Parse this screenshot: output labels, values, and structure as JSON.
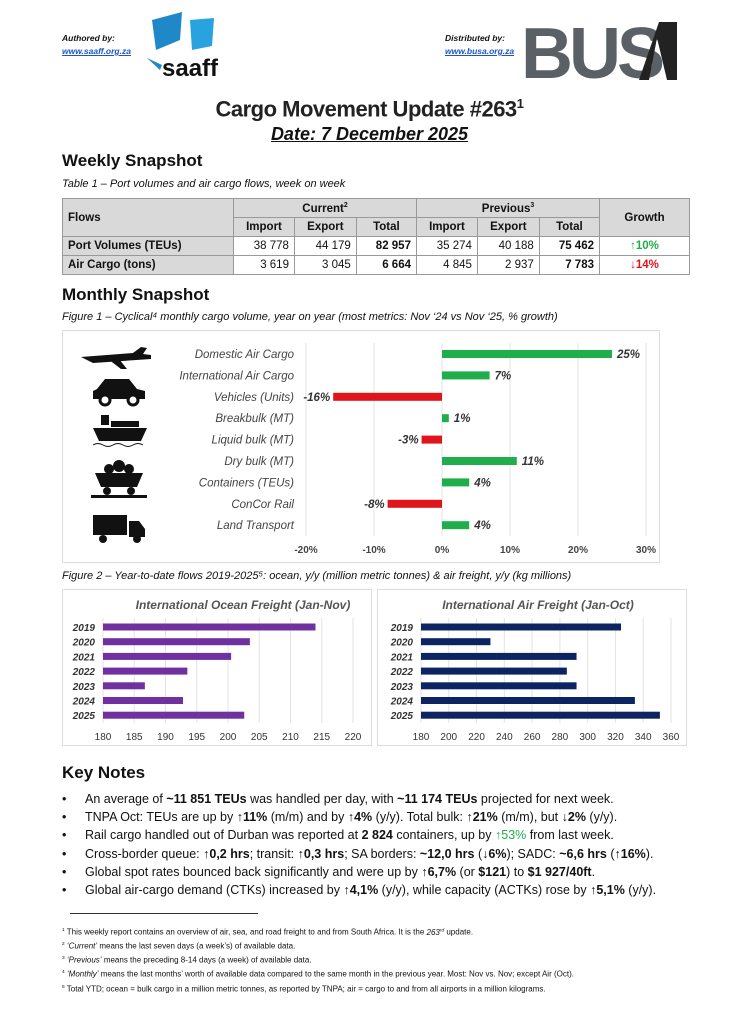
{
  "header": {
    "authored_label": "Authored by:",
    "authored_link": "www.saaff.org.za",
    "saaff_logo": "saaff",
    "distributed_label": "Distributed by:",
    "distributed_link": "www.busa.org.za",
    "busa_logo": "BUSA"
  },
  "title": "Cargo Movement Update #263",
  "title_sup": "1",
  "date": "Date: 7 December 2025",
  "weekly": {
    "heading": "Weekly Snapshot",
    "caption": "Table 1 – Port volumes and air cargo flows, week on week",
    "cols": {
      "flows": "Flows",
      "current": "Current",
      "current_sup": "2",
      "previous": "Previous",
      "previous_sup": "3",
      "growth": "Growth",
      "import": "Import",
      "export": "Export",
      "total": "Total"
    },
    "rows": [
      {
        "label": "Port Volumes (TEUs)",
        "c_imp": "38 778",
        "c_exp": "44 179",
        "c_tot": "82 957",
        "p_imp": "35 274",
        "p_exp": "40 188",
        "p_tot": "75 462",
        "growth": "↑10%",
        "dir": "up"
      },
      {
        "label": "Air Cargo (tons)",
        "c_imp": "3 619",
        "c_exp": "3 045",
        "c_tot": "6 664",
        "p_imp": "4 845",
        "p_exp": "2 937",
        "p_tot": "7 783",
        "growth": "↓14%",
        "dir": "down"
      }
    ]
  },
  "monthly": {
    "heading": "Monthly Snapshot",
    "caption": "Figure 1 – Cyclical⁴ monthly cargo volume, year on year (most metrics: Nov ‘24 vs Nov ‘25, % growth)"
  },
  "fig2_caption": "Figure 2 – Year-to-date flows 2019-2025⁵: ocean, y/y (million metric tonnes) & air freight, y/y (kg millions)",
  "colors": {
    "positive": "#1fae4b",
    "negative": "#e0141b",
    "ocean": "#7030a0",
    "air": "#0c2461"
  },
  "chart_data": [
    {
      "type": "bar",
      "orientation": "horizontal",
      "title": "",
      "categories": [
        "Domestic Air Cargo",
        "International Air Cargo",
        "Vehicles (Units)",
        "Breakbulk (MT)",
        "Liquid bulk (MT)",
        "Dry bulk (MT)",
        "Containers (TEUs)",
        "ConCor Rail",
        "Land Transport"
      ],
      "values": [
        25,
        7,
        -16,
        1,
        -3,
        11,
        4,
        -8,
        4
      ],
      "labels": [
        "25%",
        "7%",
        "-16%",
        "1%",
        "-3%",
        "11%",
        "4%",
        "-8%",
        "4%"
      ],
      "xlim": [
        -20,
        30
      ],
      "xticks": [
        "-20%",
        "-10%",
        "0%",
        "10%",
        "20%",
        "30%"
      ],
      "icons": [
        "airplane-icon",
        "car-icon",
        "ship-icon",
        "mining-cart-icon",
        "truck-icon"
      ]
    },
    {
      "type": "bar",
      "orientation": "horizontal",
      "title": "International Ocean Freight (Jan-Nov)",
      "categories": [
        "2019",
        "2020",
        "2021",
        "2022",
        "2023",
        "2024",
        "2025"
      ],
      "values": [
        214,
        203.5,
        200.5,
        193.5,
        186.7,
        192.8,
        202.6
      ],
      "xlim": [
        180,
        220
      ],
      "xticks": [
        "180",
        "185",
        "190",
        "195",
        "200",
        "205",
        "210",
        "215",
        "220"
      ]
    },
    {
      "type": "bar",
      "orientation": "horizontal",
      "title": "International Air Freight (Jan-Oct)",
      "categories": [
        "2019",
        "2020",
        "2021",
        "2022",
        "2023",
        "2024",
        "2025"
      ],
      "values": [
        324,
        230,
        292,
        285,
        292,
        334,
        352
      ],
      "xlim": [
        180,
        360
      ],
      "xticks": [
        "180",
        "200",
        "220",
        "240",
        "260",
        "280",
        "300",
        "320",
        "340",
        "360"
      ]
    }
  ],
  "key_notes": {
    "heading": "Key Notes",
    "items": [
      [
        {
          "t": "An average of "
        },
        {
          "t": "~11 851 TEUs",
          "b": 1
        },
        {
          "t": " was handled per day, with "
        },
        {
          "t": "~11 174 TEUs",
          "b": 1
        },
        {
          "t": " projected for next week."
        }
      ],
      [
        {
          "t": "TNPA Oct: TEUs are up by "
        },
        {
          "t": "↑11%",
          "b": 1
        },
        {
          "t": " (m/m) and by "
        },
        {
          "t": "↑4%",
          "b": 1
        },
        {
          "t": " (y/y). Total bulk: "
        },
        {
          "t": "↑21%",
          "b": 1
        },
        {
          "t": " (m/m), but "
        },
        {
          "t": "↓2%",
          "b": 1
        },
        {
          "t": " (y/y)."
        }
      ],
      [
        {
          "t": "Rail cargo handled out of Durban was reported at "
        },
        {
          "t": "2 824",
          "b": 1
        },
        {
          "t": " containers, up by "
        },
        {
          "t": "↑53%",
          "g": 1
        },
        {
          "t": " from last week."
        }
      ],
      [
        {
          "t": "Cross-border queue: "
        },
        {
          "t": "↑0,2 hrs",
          "b": 1
        },
        {
          "t": "; transit: "
        },
        {
          "t": "↑0,3 hrs",
          "b": 1
        },
        {
          "t": "; SA borders: "
        },
        {
          "t": "~12,0 hrs",
          "b": 1
        },
        {
          "t": " ("
        },
        {
          "t": "↓6%",
          "b": 1
        },
        {
          "t": "); SADC: "
        },
        {
          "t": "~6,6 hrs",
          "b": 1
        },
        {
          "t": " ("
        },
        {
          "t": "↑16%",
          "b": 1
        },
        {
          "t": ")."
        }
      ],
      [
        {
          "t": "Global spot rates bounced back significantly and were up by "
        },
        {
          "t": "↑6,7%",
          "b": 1
        },
        {
          "t": " (or "
        },
        {
          "t": "$121",
          "b": 1
        },
        {
          "t": ") to "
        },
        {
          "t": "$1 927/40ft",
          "b": 1
        },
        {
          "t": "."
        }
      ],
      [
        {
          "t": "Global air-cargo demand (CTKs) increased by "
        },
        {
          "t": "↑4,1%",
          "b": 1
        },
        {
          "t": " (y/y), while capacity (ACTKs) rose by "
        },
        {
          "t": "↑5,1%",
          "b": 1
        },
        {
          "t": " (y/y)."
        }
      ]
    ]
  },
  "footnotes": [
    {
      "n": "1",
      "html": "This weekly report contains an overview of air, sea, and road freight to and from South Africa. It is the <i>263<sup>rd</sup></i> update."
    },
    {
      "n": "2",
      "html": "<i>‘Current’</i> means the last seven days (a week’s) of available data."
    },
    {
      "n": "3",
      "html": "<i>‘Previous’</i> means the preceding 8-14 days (a week) of available data."
    },
    {
      "n": "4",
      "html": "<i>‘Monthly’</i> means the last months’ worth of available data compared to the same month in the previous year. Most: Nov vs. Nov; except Air (Oct)."
    },
    {
      "n": "5",
      "html": "Total YTD; ocean = bulk cargo in a million metric tonnes, as reported by TNPA; air = cargo to and from all airports in a million kilograms."
    }
  ]
}
